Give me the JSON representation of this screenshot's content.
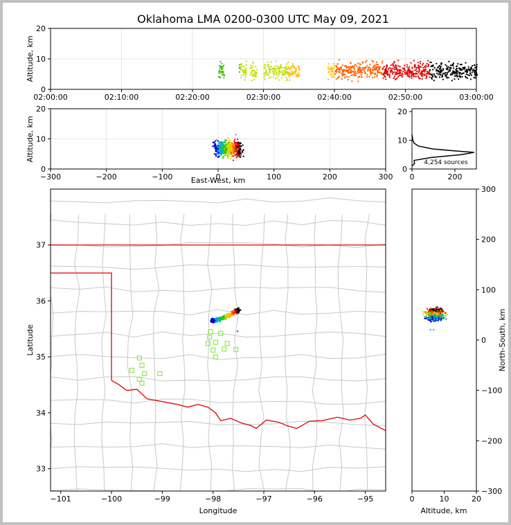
{
  "chart_data": [
    {
      "panel": "time-height",
      "type": "scatter",
      "title": "Oklahoma LMA 0200-0300 UTC May 09, 2021",
      "ylabel": "Altitude, km",
      "xlim": [
        "02:00:00",
        "03:00:00"
      ],
      "ylim": [
        0,
        20
      ],
      "xticks": [
        "02:00:00",
        "02:10:00",
        "02:20:00",
        "02:30:00",
        "02:40:00",
        "02:50:00",
        "03:00:00"
      ],
      "yticks": [
        "0",
        "10",
        "20"
      ],
      "grid": true,
      "activity_windows_minutes": [
        [
          23.5,
          24.5
        ],
        [
          26.5,
          27.5
        ],
        [
          28,
          29
        ],
        [
          30,
          33.5
        ],
        [
          33.5,
          35
        ],
        [
          39,
          43.5
        ],
        [
          43.5,
          47.5
        ],
        [
          47.5,
          51
        ],
        [
          51,
          55
        ],
        [
          55,
          58
        ],
        [
          58,
          60
        ]
      ],
      "altitude_range_km": [
        3,
        11
      ]
    },
    {
      "panel": "east-west-altitude",
      "type": "scatter",
      "xlabel": "East-West, km",
      "ylabel": "Altitude, km",
      "xlim": [
        -300,
        300
      ],
      "ylim": [
        0,
        20
      ],
      "xticks": [
        "−300",
        "−200",
        "−100",
        "0",
        "100",
        "200",
        "300"
      ],
      "yticks": [
        "0",
        "10",
        "20"
      ],
      "grid": true,
      "cluster_center": {
        "x": 20,
        "y": 7
      }
    },
    {
      "panel": "altitude-histogram",
      "type": "line",
      "annotation": "4,254 sources",
      "xlim": [
        0,
        300
      ],
      "ylim": [
        0,
        21
      ],
      "xticks": [
        "0",
        "200"
      ],
      "yticks": [
        "0",
        "10",
        "20"
      ],
      "profile": [
        {
          "alt": 1,
          "count": 0
        },
        {
          "alt": 2,
          "count": 12
        },
        {
          "alt": 3,
          "count": 10
        },
        {
          "alt": 4,
          "count": 90
        },
        {
          "alt": 5,
          "count": 230
        },
        {
          "alt": 5.8,
          "count": 290
        },
        {
          "alt": 6.3,
          "count": 200
        },
        {
          "alt": 7,
          "count": 95
        },
        {
          "alt": 8,
          "count": 30
        },
        {
          "alt": 9,
          "count": 10
        },
        {
          "alt": 10,
          "count": 4
        },
        {
          "alt": 11,
          "count": 2
        },
        {
          "alt": 12,
          "count": 0
        }
      ]
    },
    {
      "panel": "plan-view",
      "type": "map",
      "xlabel": "Longitude",
      "ylabel": "Latitude",
      "xlim": [
        -101.2,
        -94.6
      ],
      "ylim": [
        32.6,
        38
      ],
      "xticks": [
        "−101",
        "−100",
        "−99",
        "−98",
        "−97",
        "−96",
        "−95"
      ],
      "yticks": [
        "33",
        "34",
        "35",
        "36",
        "37"
      ],
      "storm_track": [
        [
          -98.05,
          35.65
        ],
        [
          -97.9,
          35.68
        ],
        [
          -97.75,
          35.73
        ],
        [
          -97.6,
          35.8
        ],
        [
          -97.5,
          35.85
        ]
      ],
      "stations": [
        [
          -98.05,
          35.45
        ],
        [
          -97.85,
          35.42
        ],
        [
          -98.07,
          35.35
        ],
        [
          -98.1,
          35.24
        ],
        [
          -97.95,
          35.26
        ],
        [
          -97.72,
          35.24
        ],
        [
          -98.0,
          35.12
        ],
        [
          -97.78,
          35.14
        ],
        [
          -97.55,
          35.13
        ],
        [
          -97.95,
          35.0
        ],
        [
          -99.45,
          34.98
        ],
        [
          -99.4,
          34.85
        ],
        [
          -99.6,
          34.76
        ],
        [
          -99.35,
          34.7
        ],
        [
          -99.05,
          34.7
        ],
        [
          -99.45,
          34.6
        ],
        [
          -99.4,
          34.53
        ]
      ]
    },
    {
      "panel": "altitude-north-south",
      "type": "scatter",
      "xlabel": "Altitude, km",
      "ylabel": "North-South, km",
      "xlim": [
        0,
        20
      ],
      "ylim": [
        -300,
        300
      ],
      "xticks": [
        "0",
        "10",
        "20"
      ],
      "yticks": [
        "−300",
        "−200",
        "−100",
        "0",
        "100",
        "200",
        "300"
      ],
      "cluster_center": {
        "x": 7,
        "y": 52
      }
    }
  ],
  "colors": {
    "frame": "#c0c0c0",
    "state_border": "#e00000",
    "county_lines": "#c8c8c8",
    "stations": "#88ee44",
    "grid": "#e6e6e6",
    "source_palette": [
      "#0000cc",
      "#00a0ff",
      "#00c080",
      "#40c000",
      "#c0e000",
      "#ffc000",
      "#ff6000",
      "#e00000",
      "#000000"
    ]
  }
}
